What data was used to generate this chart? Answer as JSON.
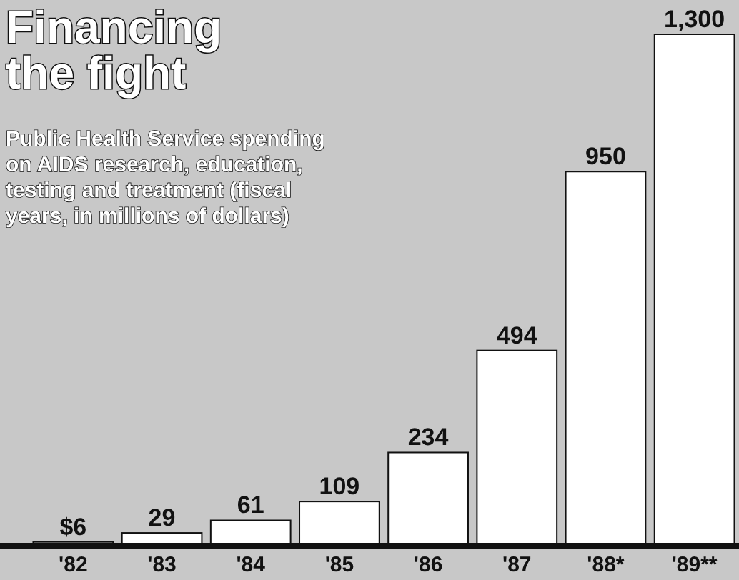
{
  "chart_data": {
    "type": "bar",
    "title": "Financing the fight",
    "subtitle": "Public Health Service spending on AIDS research, education, testing and treatment (fiscal years, in millions of dollars)",
    "categories": [
      "'82",
      "'83",
      "'84",
      "'85",
      "'86",
      "'87",
      "'88*",
      "'89**"
    ],
    "values": [
      6,
      29,
      61,
      109,
      234,
      494,
      950,
      1300
    ],
    "value_labels": [
      "$6",
      "29",
      "61",
      "109",
      "234",
      "494",
      "950",
      "1,300"
    ],
    "color": "#ffffff"
  }
}
